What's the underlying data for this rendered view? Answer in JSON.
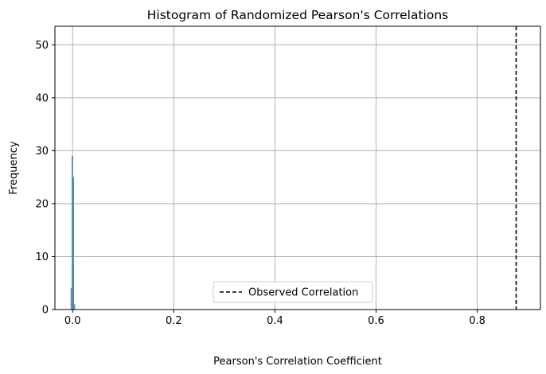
{
  "chart_data": {
    "type": "bar",
    "title": "Histogram of Randomized Pearson's Correlations",
    "xlabel": "Pearson's Correlation Coefficient",
    "ylabel": "Frequency",
    "xlim": [
      -0.035,
      0.925
    ],
    "ylim": [
      0,
      53.5
    ],
    "xticks": [
      0.0,
      0.2,
      0.4,
      0.6,
      0.8
    ],
    "xtick_labels": [
      "0.0",
      "0.2",
      "0.4",
      "0.6",
      "0.8"
    ],
    "yticks": [
      0,
      10,
      20,
      30,
      40,
      50
    ],
    "ytick_labels": [
      "0",
      "10",
      "20",
      "30",
      "40",
      "50"
    ],
    "grid": true,
    "bins": [
      {
        "x0": -0.0035,
        "x1": -0.0015,
        "count": 4
      },
      {
        "x0": -0.0015,
        "x1": 0.0005,
        "count": 29
      },
      {
        "x0": 0.0005,
        "x1": 0.0025,
        "count": 25
      },
      {
        "x0": 0.0025,
        "x1": 0.0045,
        "count": 1
      }
    ],
    "bar_color": "#5fa2c9",
    "observed_correlation": 0.877,
    "observed_line_color": "#000000",
    "legend": {
      "placement": "lower-center",
      "entries": [
        {
          "label": "Observed Correlation",
          "style": "dashed-line"
        }
      ]
    }
  }
}
